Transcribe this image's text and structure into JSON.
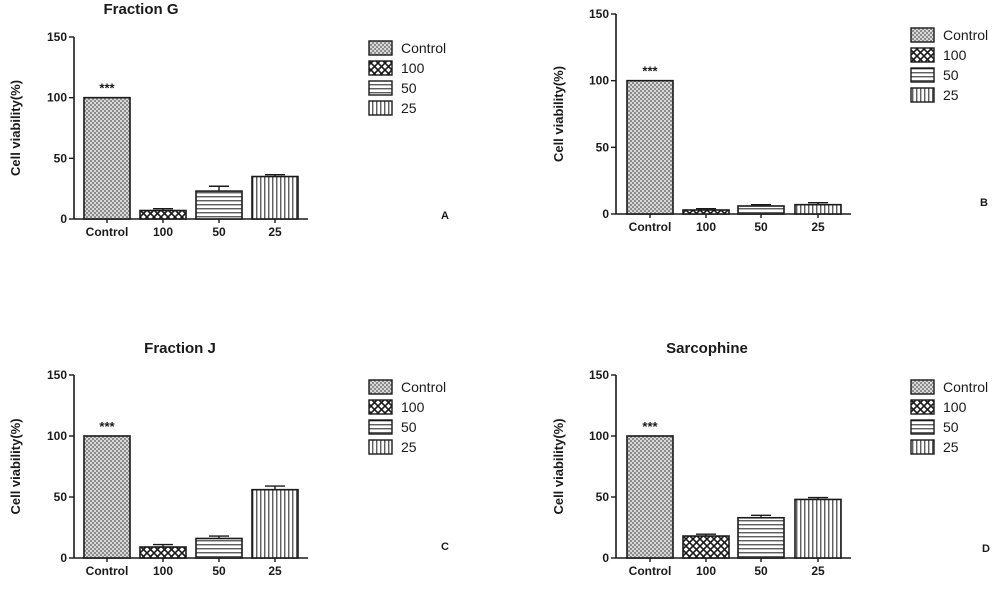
{
  "chart_data": [
    {
      "type": "bar",
      "panel": "A",
      "title": "Fraction G",
      "ylabel": "Cell viability(%)",
      "ylim": [
        0,
        150
      ],
      "yticks": [
        "0",
        "50",
        "100",
        "150"
      ],
      "categories": [
        "Control",
        "100",
        "50",
        "25"
      ],
      "values": [
        100,
        7,
        23,
        35
      ],
      "errors": [
        0,
        1.5,
        4,
        1.5
      ],
      "annotation": "***",
      "legend": [
        "Control",
        "100",
        "50",
        "25"
      ]
    },
    {
      "type": "bar",
      "panel": "B",
      "title": "",
      "ylabel": "Cell viability(%)",
      "ylim": [
        0,
        150
      ],
      "yticks": [
        "0",
        "50",
        "100",
        "150"
      ],
      "categories": [
        "Control",
        "100",
        "50",
        "25"
      ],
      "values": [
        100,
        3,
        6,
        7
      ],
      "errors": [
        0,
        1,
        1,
        1.5
      ],
      "annotation": "***",
      "legend": [
        "Control",
        "100",
        "50",
        "25"
      ]
    },
    {
      "type": "bar",
      "panel": "C",
      "title": "Fraction J",
      "ylabel": "Cell viability(%)",
      "ylim": [
        0,
        150
      ],
      "yticks": [
        "0",
        "50",
        "100",
        "150"
      ],
      "categories": [
        "Control",
        "100",
        "50",
        "25"
      ],
      "values": [
        100,
        9,
        16,
        56
      ],
      "errors": [
        0,
        2,
        2,
        3
      ],
      "annotation": "***",
      "legend": [
        "Control",
        "100",
        "50",
        "25"
      ]
    },
    {
      "type": "bar",
      "panel": "D",
      "title": "Sarcophine",
      "ylabel": "Cell viability(%)",
      "ylim": [
        0,
        150
      ],
      "yticks": [
        "0",
        "50",
        "100",
        "150"
      ],
      "categories": [
        "Control",
        "100",
        "50",
        "25"
      ],
      "values": [
        100,
        18,
        33,
        48
      ],
      "errors": [
        0,
        1.5,
        2,
        1.5
      ],
      "annotation": "***",
      "legend": [
        "Control",
        "100",
        "50",
        "25"
      ]
    }
  ]
}
